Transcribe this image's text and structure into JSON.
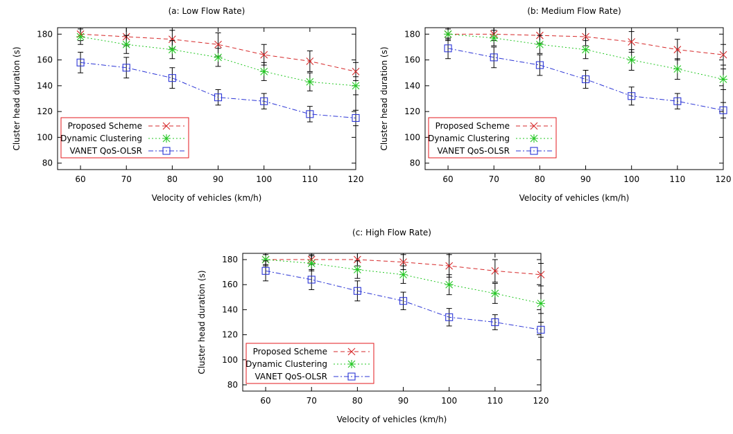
{
  "chart_data": [
    {
      "type": "line",
      "title": "(a: Low Flow Rate)",
      "xlabel": "Velocity of vehicles (km/h)",
      "ylabel": "Cluster head duration (s)",
      "xlim": [
        55,
        120
      ],
      "ylim": [
        75,
        185
      ],
      "xticks": [
        60,
        70,
        80,
        90,
        100,
        110,
        120
      ],
      "yticks": [
        80,
        100,
        120,
        140,
        160,
        180
      ],
      "grid": false,
      "legend_position": "bottom-left",
      "x": [
        60,
        70,
        80,
        90,
        100,
        110,
        120
      ],
      "series": [
        {
          "name": "Proposed Scheme",
          "color": "#d62728",
          "marker": "x",
          "dash": "dashed",
          "values": [
            180,
            178,
            176,
            172,
            164,
            159,
            151
          ],
          "errors": [
            5,
            7,
            7,
            9,
            8,
            8,
            7
          ]
        },
        {
          "name": "Dynamic Clustering",
          "color": "#22c722",
          "marker": "asterisk",
          "dash": "dotted",
          "values": [
            178,
            172,
            168,
            162,
            151,
            143,
            140
          ],
          "errors": [
            6,
            7,
            7,
            7,
            7,
            7,
            7
          ]
        },
        {
          "name": "VANET QoS-OLSR",
          "color": "#2b35d6",
          "marker": "square",
          "dash": "dashdot",
          "values": [
            158,
            154,
            146,
            131,
            128,
            118,
            115
          ],
          "errors": [
            8,
            8,
            8,
            6,
            6,
            6,
            6
          ]
        }
      ]
    },
    {
      "type": "line",
      "title": "(b: Medium Flow Rate)",
      "xlabel": "Velocity of vehicles (km/h)",
      "ylabel": "Cluster head duration (s)",
      "xlim": [
        55,
        120
      ],
      "ylim": [
        75,
        185
      ],
      "xticks": [
        60,
        70,
        80,
        90,
        100,
        110,
        120
      ],
      "yticks": [
        80,
        100,
        120,
        140,
        160,
        180
      ],
      "grid": false,
      "legend_position": "bottom-left",
      "x": [
        60,
        70,
        80,
        90,
        100,
        110,
        120
      ],
      "series": [
        {
          "name": "Proposed Scheme",
          "color": "#d62728",
          "marker": "x",
          "dash": "dashed",
          "values": [
            180,
            180,
            179,
            178,
            174,
            168,
            164
          ],
          "errors": [
            4,
            5,
            6,
            7,
            8,
            8,
            8
          ]
        },
        {
          "name": "Dynamic Clustering",
          "color": "#22c722",
          "marker": "asterisk",
          "dash": "dotted",
          "values": [
            180,
            177,
            172,
            168,
            160,
            153,
            145
          ],
          "errors": [
            5,
            6,
            7,
            7,
            8,
            8,
            8
          ]
        },
        {
          "name": "VANET QoS-OLSR",
          "color": "#2b35d6",
          "marker": "square",
          "dash": "dashdot",
          "values": [
            169,
            162,
            156,
            145,
            132,
            128,
            121
          ],
          "errors": [
            8,
            8,
            8,
            7,
            7,
            6,
            6
          ]
        }
      ]
    },
    {
      "type": "line",
      "title": "(c: High Flow Rate)",
      "xlabel": "Velocity of vehicles (km/h)",
      "ylabel": "Cluster head duration (s)",
      "xlim": [
        55,
        120
      ],
      "ylim": [
        75,
        185
      ],
      "xticks": [
        60,
        70,
        80,
        90,
        100,
        110,
        120
      ],
      "yticks": [
        80,
        100,
        120,
        140,
        160,
        180
      ],
      "grid": false,
      "legend_position": "bottom-left",
      "x": [
        60,
        70,
        80,
        90,
        100,
        110,
        120
      ],
      "series": [
        {
          "name": "Proposed Scheme",
          "color": "#d62728",
          "marker": "x",
          "dash": "dashed",
          "values": [
            180,
            180,
            180,
            178,
            175,
            171,
            168
          ],
          "errors": [
            4,
            4,
            5,
            6,
            9,
            9,
            9
          ]
        },
        {
          "name": "Dynamic Clustering",
          "color": "#22c722",
          "marker": "asterisk",
          "dash": "dotted",
          "values": [
            180,
            177,
            172,
            168,
            160,
            153,
            145
          ],
          "errors": [
            5,
            6,
            7,
            7,
            8,
            8,
            8
          ]
        },
        {
          "name": "VANET QoS-OLSR",
          "color": "#2b35d6",
          "marker": "square",
          "dash": "dashdot",
          "values": [
            171,
            164,
            155,
            147,
            134,
            130,
            124
          ],
          "errors": [
            8,
            8,
            8,
            7,
            7,
            6,
            6
          ]
        }
      ]
    }
  ]
}
